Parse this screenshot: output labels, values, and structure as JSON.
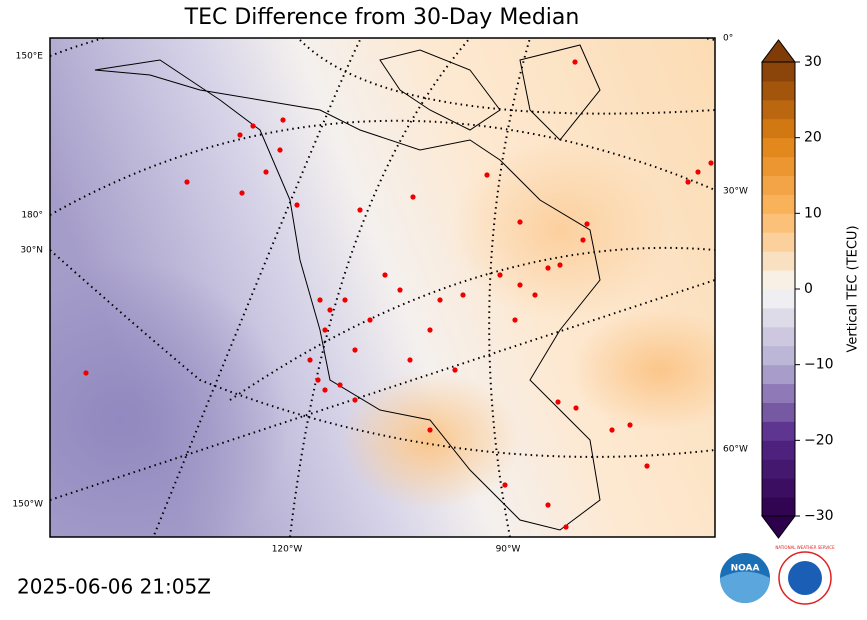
{
  "title": "TEC Difference from 30-Day Median",
  "timestamp": "2025-06-06 21:05Z",
  "map": {
    "graticule_labels_left": [
      "150°E",
      "180°",
      "30°N",
      "150°W"
    ],
    "graticule_labels_bottom": [
      "120°W",
      "90°W"
    ],
    "graticule_labels_right": [
      "0°",
      "30°W",
      "60°W"
    ]
  },
  "colorbar": {
    "label": "Vertical TEC (TECU)",
    "lim": [
      -30,
      30
    ],
    "ticks": [
      {
        "value": -30,
        "label": "−30"
      },
      {
        "value": -20,
        "label": "−20"
      },
      {
        "value": -10,
        "label": "−10"
      },
      0,
      10,
      20,
      30
    ]
  },
  "logos": [
    "NOAA",
    "NATIONAL WEATHER SERVICE"
  ]
}
